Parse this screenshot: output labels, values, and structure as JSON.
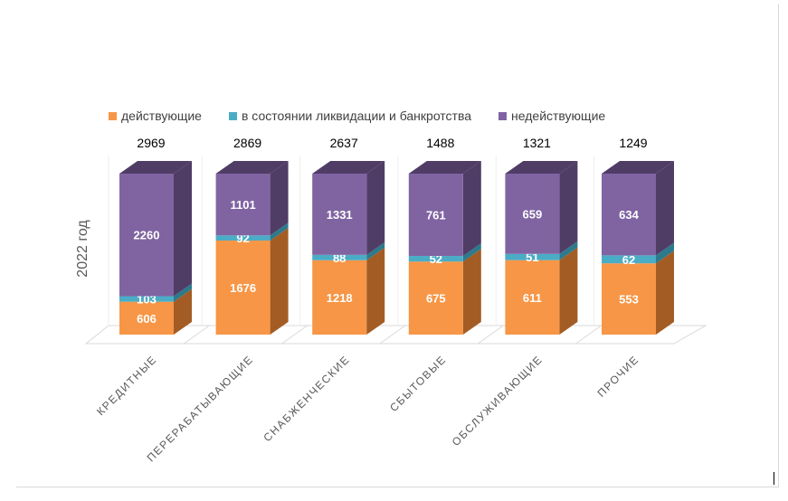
{
  "chart_data": {
    "type": "bar",
    "stacked": "percent",
    "style": "3d",
    "ylabel": "2022 год",
    "categories": [
      "КРЕДИТНЫЕ",
      "ПЕРЕРАБАТЫВАЮЩИЕ",
      "СНАБЖЕНЧЕСКИЕ",
      "СБЫТОВЫЕ",
      "ОБСЛУЖИВАЮЩИЕ",
      "ПРОЧИЕ"
    ],
    "totals": [
      "2969",
      "2869",
      "2637",
      "1488",
      "1321",
      "1249"
    ],
    "series": [
      {
        "name": "действующие",
        "color": "#f79646",
        "side": "#a35c24",
        "values": [
          606,
          1676,
          1218,
          675,
          611,
          553
        ]
      },
      {
        "name": "в состоянии ликвидации и банкротства",
        "color": "#4bacc6",
        "side": "#2d7a8c",
        "values": [
          103,
          92,
          88,
          52,
          51,
          62
        ]
      },
      {
        "name": "недействующие",
        "color": "#8064a2",
        "side": "#4f3d66",
        "values": [
          2260,
          1101,
          1331,
          761,
          659,
          634
        ]
      }
    ],
    "legend_position": "top"
  }
}
